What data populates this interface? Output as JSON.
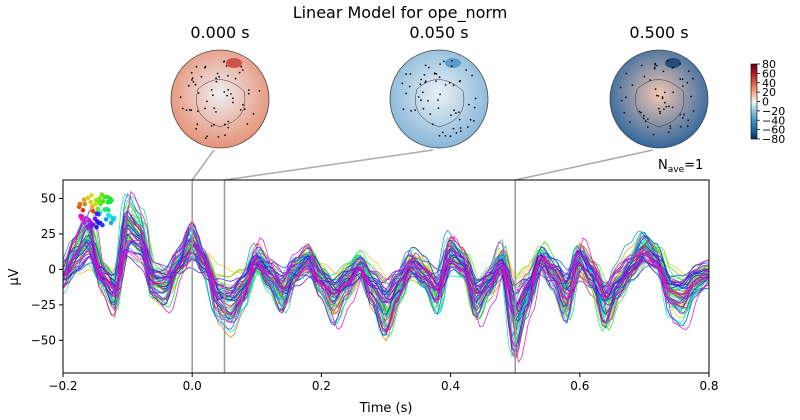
{
  "chart_data": {
    "type": "line",
    "title": "Linear Model for ope_norm",
    "xlabel": "Time (s)",
    "ylabel": "µV",
    "xlim": [
      -0.2,
      0.8
    ],
    "ylim": [
      -73,
      63
    ],
    "x_ticks": [
      -0.2,
      0,
      0.2,
      0.4,
      0.6,
      0.8
    ],
    "x_tick_labels": [
      "−0.2",
      "0.0",
      "0.2",
      "0.4",
      "0.6",
      "0.8"
    ],
    "y_ticks": [
      50,
      25,
      0,
      -25,
      -50
    ],
    "y_tick_labels": [
      "50",
      "25",
      "0",
      "−25",
      "−50"
    ],
    "nave_label": "N",
    "nave_sub": "ave",
    "nave_value": "=1",
    "n_channels": 60,
    "legend": "sensor-layout-inset top-left",
    "time_markers": [
      0.0,
      0.05,
      0.5
    ],
    "topomaps": [
      {
        "time": 0.0,
        "label": "0.000 s",
        "colors": {
          "center": "#eeeef2",
          "edge": "#e68a6c",
          "accent": "#c53a32"
        }
      },
      {
        "time": 0.05,
        "label": "0.050 s",
        "colors": {
          "center": "#e9f1f6",
          "edge": "#7fb1d5",
          "accent": "#4a8fc4"
        }
      },
      {
        "time": 0.5,
        "label": "0.500 s",
        "colors": {
          "center": "#f4c7b2",
          "edge": "#1f5f9c",
          "accent": "#0d3d70"
        }
      }
    ],
    "colorbar": {
      "range": [
        -80,
        80
      ],
      "tick_labels": [
        "80",
        "60",
        "40",
        "20",
        "0",
        "−20",
        "−40",
        "−60",
        "−80"
      ],
      "colormap": "RdBu_r",
      "colors": [
        "#053061",
        "#2166ac",
        "#4393c3",
        "#92c5de",
        "#f7f7f7",
        "#f4a582",
        "#d6604d",
        "#b2182b",
        "#67001f"
      ]
    },
    "mean_wave": {
      "x": [
        -0.2,
        -0.18,
        -0.16,
        -0.14,
        -0.12,
        -0.1,
        -0.08,
        -0.06,
        -0.04,
        -0.02,
        0.0,
        0.02,
        0.04,
        0.06,
        0.08,
        0.1,
        0.12,
        0.14,
        0.16,
        0.18,
        0.2,
        0.22,
        0.24,
        0.26,
        0.28,
        0.3,
        0.32,
        0.34,
        0.36,
        0.38,
        0.4,
        0.42,
        0.44,
        0.46,
        0.48,
        0.5,
        0.52,
        0.54,
        0.56,
        0.58,
        0.6,
        0.62,
        0.64,
        0.66,
        0.68,
        0.7,
        0.72,
        0.74,
        0.76,
        0.78,
        0.8
      ],
      "y": [
        -5,
        15,
        30,
        -5,
        -20,
        40,
        30,
        -10,
        -15,
        5,
        25,
        5,
        -25,
        -30,
        -15,
        10,
        -5,
        -20,
        0,
        10,
        -10,
        -25,
        -10,
        5,
        -15,
        -35,
        -15,
        5,
        -5,
        -20,
        15,
        5,
        -25,
        -10,
        10,
        -45,
        -20,
        10,
        -5,
        -25,
        10,
        -5,
        -30,
        -10,
        5,
        20,
        10,
        -20,
        -25,
        -10,
        -5
      ]
    }
  }
}
